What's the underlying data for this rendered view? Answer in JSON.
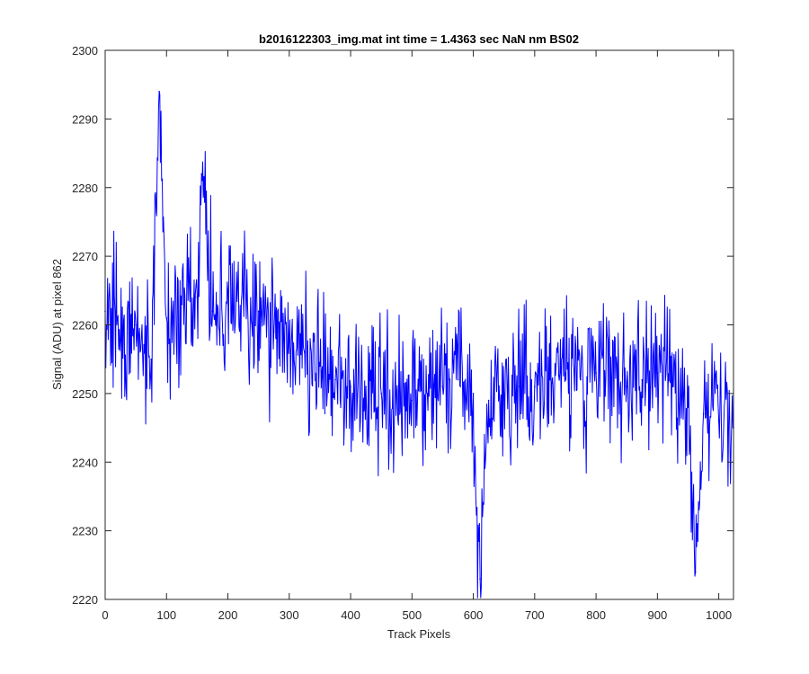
{
  "chart_data": {
    "type": "line",
    "title": "b2016122303_img.mat int time = 1.4363 sec  NaN nm BS02",
    "xlabel": "Track Pixels",
    "ylabel": "Signal (ADU) at pixel 862",
    "xlim": [
      0,
      1024
    ],
    "ylim": [
      2220,
      2300
    ],
    "xticks": [
      0,
      100,
      200,
      300,
      400,
      500,
      600,
      700,
      800,
      900,
      1000
    ],
    "yticks": [
      2220,
      2230,
      2240,
      2250,
      2260,
      2270,
      2280,
      2290,
      2300
    ],
    "grid": false,
    "series": [
      {
        "name": "signal",
        "color": "#0000ff",
        "x": [
          0,
          25,
          50,
          75,
          88,
          100,
          125,
          150,
          157,
          175,
          200,
          225,
          250,
          275,
          300,
          325,
          350,
          375,
          400,
          425,
          450,
          475,
          500,
          525,
          550,
          575,
          600,
          611,
          625,
          650,
          675,
          700,
          725,
          750,
          775,
          800,
          825,
          850,
          875,
          900,
          925,
          950,
          962,
          975,
          1000,
          1024
        ],
        "y": [
          2262,
          2258,
          2260,
          2255,
          2294,
          2261,
          2263,
          2264,
          2282,
          2262,
          2265,
          2264,
          2262,
          2259,
          2258,
          2256,
          2254,
          2252,
          2251,
          2251,
          2250,
          2250,
          2249,
          2250,
          2251,
          2252,
          2250,
          2223,
          2249,
          2250,
          2251,
          2251,
          2252,
          2253,
          2252,
          2253,
          2252,
          2251,
          2252,
          2253,
          2251,
          2248,
          2224,
          2247,
          2246,
          2245
        ]
      }
    ]
  }
}
